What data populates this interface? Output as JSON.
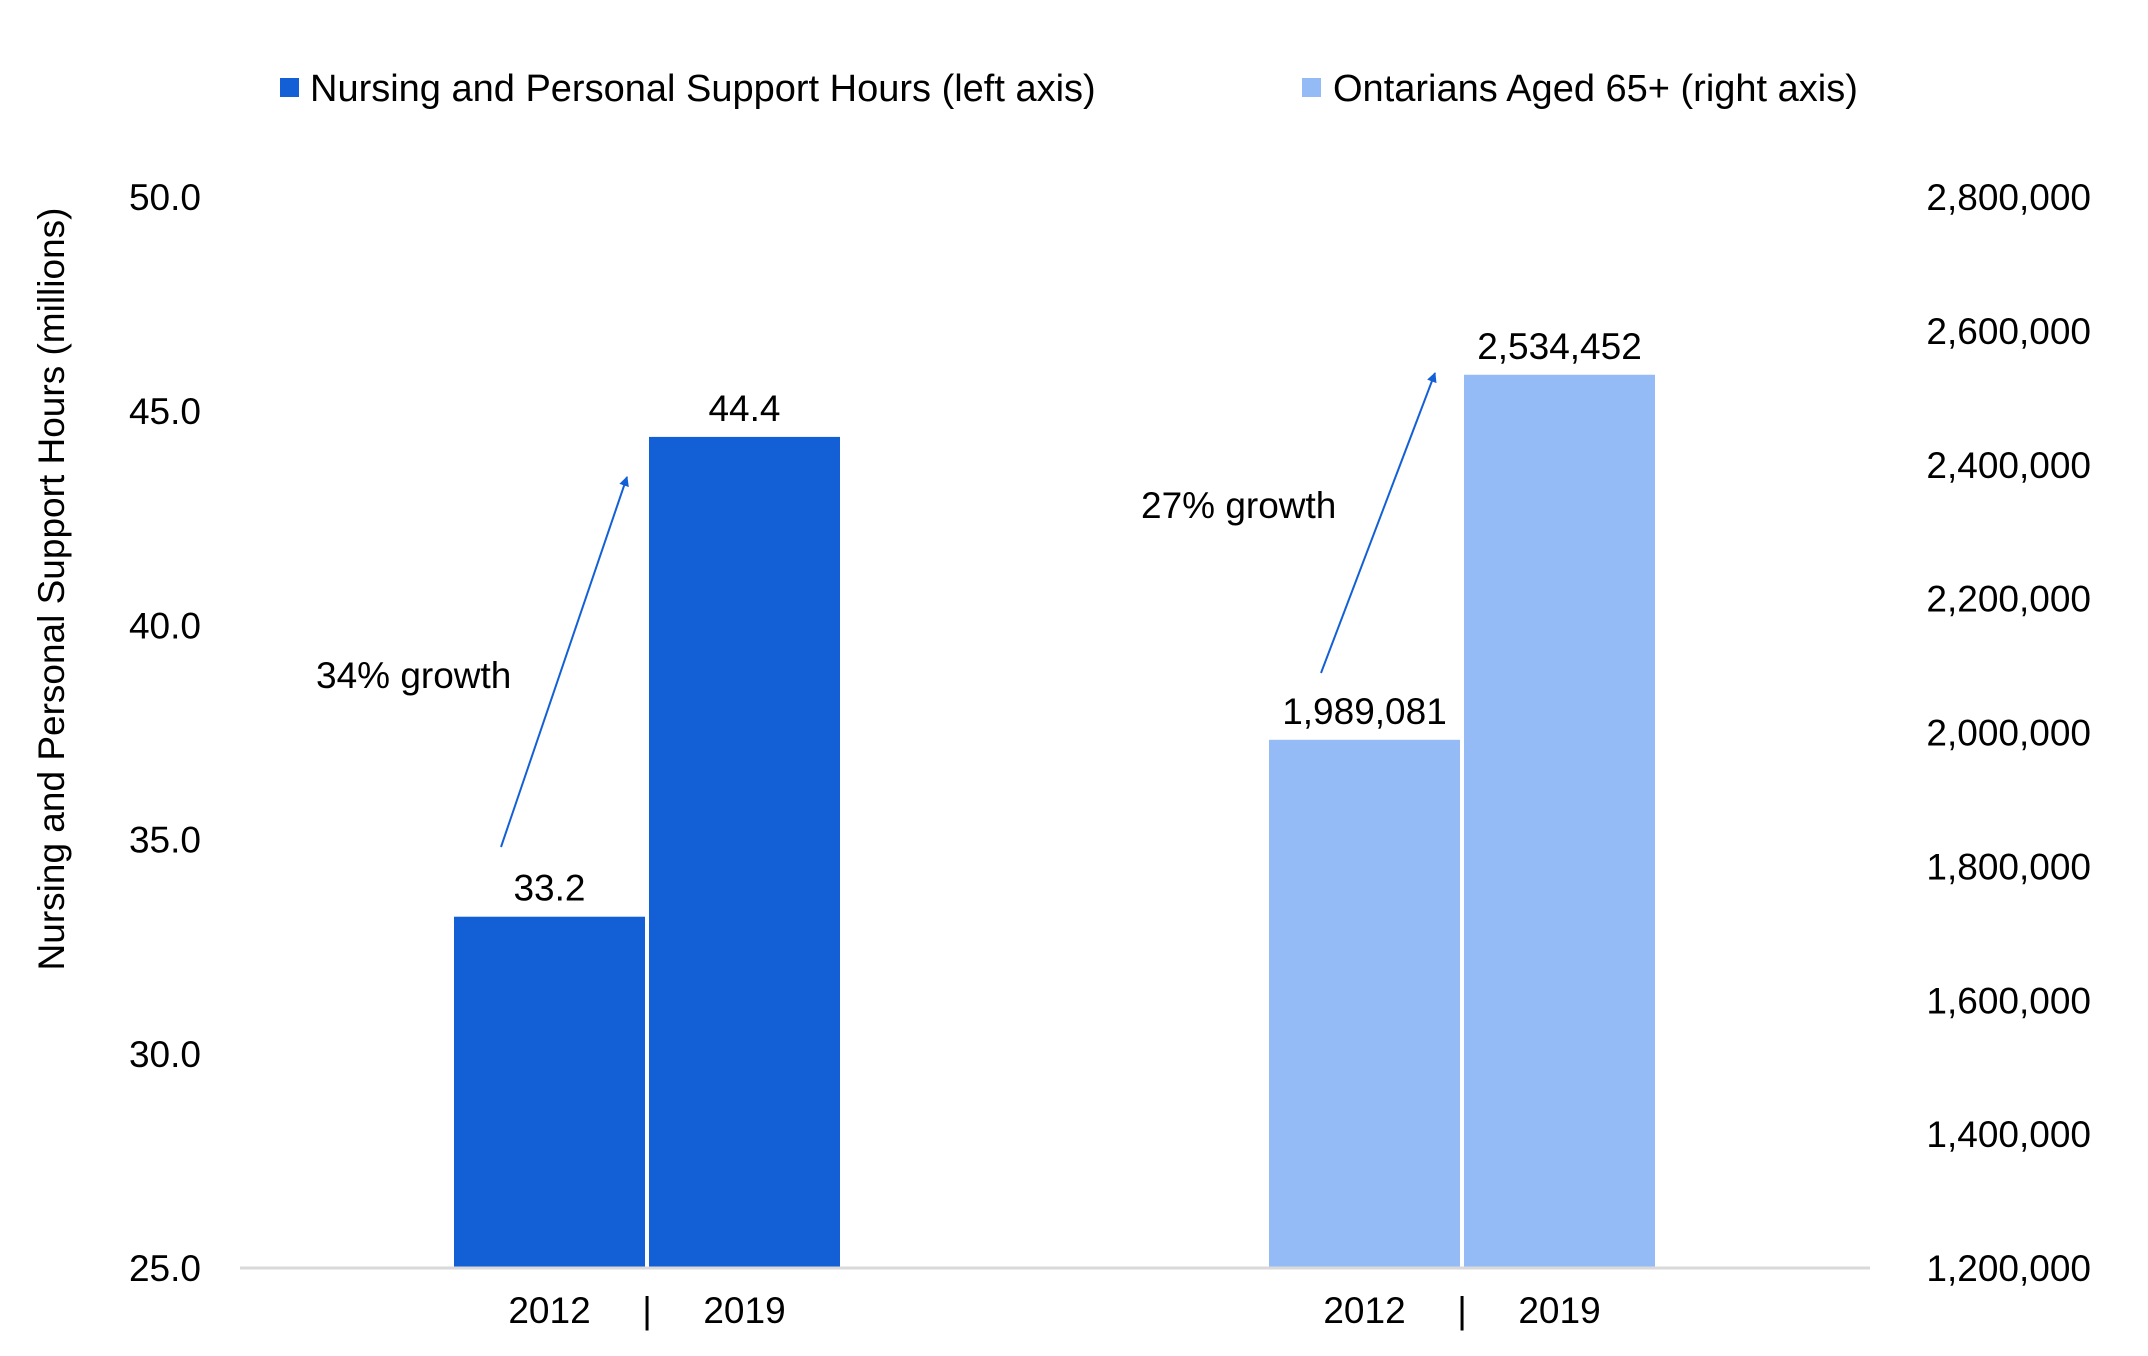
{
  "chart_data": {
    "type": "bar",
    "legend": {
      "position": "top",
      "entries": [
        {
          "label": "Nursing and Personal Support Hours (left axis)",
          "color": "#1360d6"
        },
        {
          "label": "Ontarians Aged 65+ (right axis)",
          "color": "#95bbf7"
        }
      ]
    },
    "axes": {
      "left": {
        "title": "Nursing and Personal Support Hours (millions)",
        "range": [
          25,
          50
        ],
        "ticks": [
          "25.0",
          "30.0",
          "35.0",
          "40.0",
          "45.0",
          "50.0"
        ]
      },
      "right": {
        "title": "",
        "range": [
          1200000,
          2800000
        ],
        "ticks": [
          "1,200,000",
          "1,400,000",
          "1,600,000",
          "1,800,000",
          "2,000,000",
          "2,200,000",
          "2,400,000",
          "2,600,000",
          "2,800,000"
        ]
      }
    },
    "groups": [
      {
        "axis": "left",
        "color": "#1360d6",
        "categories": [
          "2012",
          "2019"
        ],
        "values": [
          33.2,
          44.4
        ],
        "value_labels": [
          "33.2",
          "44.4"
        ],
        "separator": "|",
        "annotation": "34% growth"
      },
      {
        "axis": "right",
        "color": "#95bbf7",
        "categories": [
          "2012",
          "2019"
        ],
        "values": [
          1989081,
          2534452
        ],
        "value_labels": [
          "1,989,081",
          "2,534,452"
        ],
        "separator": "|",
        "annotation": "27% growth"
      }
    ],
    "arrow_color": "#1360d6",
    "baseline_color": "#d9d9d9"
  }
}
